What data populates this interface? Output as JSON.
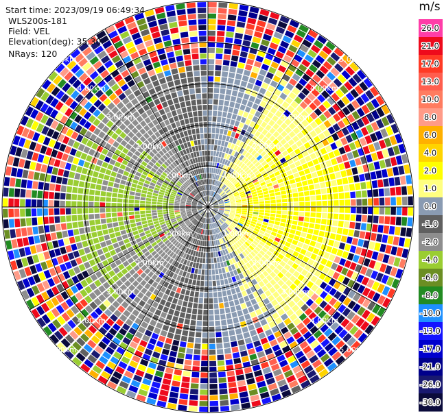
{
  "header": {
    "start_time": "Start time: 2023/09/19 06:49:34",
    "instrument": "WLS200s-181",
    "field": "Field: VEL",
    "elevation": "Elevation(deg): 35.30",
    "nrays": "NRays: 120"
  },
  "chart_data": {
    "type": "heatmap",
    "projection": "polar-ppi",
    "n_rays": 120,
    "range_rings_km": [
      1.0,
      2.0,
      3.0,
      4.0,
      5.0
    ],
    "max_range_km": 5.0,
    "ring_labels": [
      "1.00km",
      "2.00km",
      "3.00km",
      "4.00km",
      "5.00km"
    ],
    "colorbar": {
      "unit": "m/s",
      "tick_labels": [
        "26.0",
        "21.0",
        "17.0",
        "13.0",
        "10.0",
        "8.0",
        "6.0",
        "4.0",
        "2.0",
        "1.0",
        "0.0",
        "-1.0",
        "-2.0",
        "-4.0",
        "-6.0",
        "-8.0",
        "-10.0",
        "-13.0",
        "-17.0",
        "-21.0",
        "-26.0",
        "-30.0"
      ],
      "colors": [
        "#ff3da8",
        "#ee0a1c",
        "#ff3a25",
        "#ff5e4e",
        "#ff7c60",
        "#ff9b88",
        "#ffb000",
        "#ffd400",
        "#ffff00",
        "#ffff80",
        "#8a9bb2",
        "#606060",
        "#8e8e8e",
        "#9acd32",
        "#6b8e23",
        "#228b22",
        "#1e90ff",
        "#1414ff",
        "#0000cd",
        "#00008b",
        "#191970",
        "#0b0b3b"
      ]
    },
    "velocity_pattern": {
      "inner_flow_direction_deg": 90,
      "inner_peak_ms": 2.0,
      "valid_range_km": 3.2
    }
  }
}
